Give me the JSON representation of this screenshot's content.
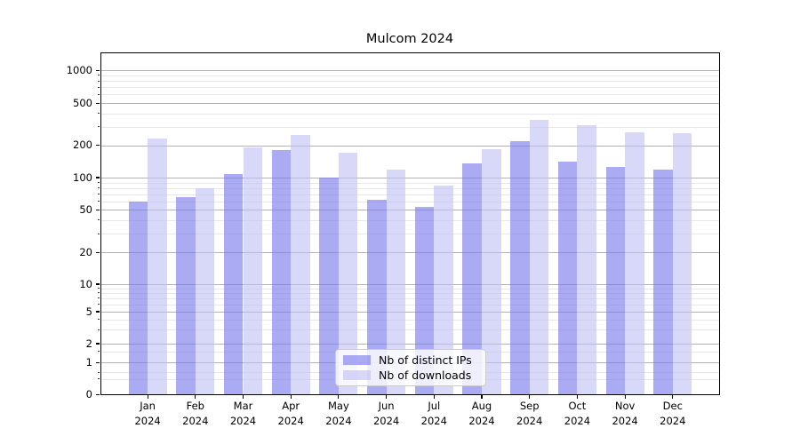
{
  "title": "Mulcom 2024",
  "chart_data": {
    "type": "bar",
    "title": "Mulcom 2024",
    "categories": [
      "Jan 2024",
      "Feb 2024",
      "Mar 2024",
      "Apr 2024",
      "May 2024",
      "Jun 2024",
      "Jul 2024",
      "Aug 2024",
      "Sep 2024",
      "Oct 2024",
      "Nov 2024",
      "Dec 2024"
    ],
    "series": [
      {
        "name": "Nb of distinct IPs",
        "color": "rgba(120,120,235,0.62)",
        "values": [
          60,
          66,
          108,
          180,
          100,
          62,
          53,
          136,
          217,
          142,
          125,
          119
        ]
      },
      {
        "name": "Nb of downloads",
        "color": "rgba(190,190,245,0.6)",
        "values": [
          230,
          80,
          190,
          250,
          172,
          119,
          85,
          185,
          350,
          310,
          268,
          260
        ]
      }
    ],
    "xlabel": "",
    "ylabel": "",
    "y_axis": {
      "scale": "symlog",
      "ticks": [
        0,
        1,
        2,
        5,
        10,
        20,
        50,
        100,
        200,
        500,
        1000
      ],
      "minor_ticks": [
        0.5,
        0.7,
        1.5,
        3,
        4,
        6,
        7,
        8,
        9,
        30,
        40,
        60,
        70,
        80,
        90,
        300,
        400,
        600,
        700,
        800,
        900
      ],
      "ylim": [
        0,
        1500
      ]
    },
    "grid": true,
    "legend": {
      "position": "lower center",
      "entries": [
        "Nb of distinct IPs",
        "Nb of downloads"
      ]
    }
  },
  "colors": {
    "major_grid": "#b3b3b3",
    "minor_grid": "#e8e8e8",
    "spine": "#000000",
    "legend_border": "#cccccc",
    "legend_bg": "rgba(255,255,255,0.8)"
  }
}
